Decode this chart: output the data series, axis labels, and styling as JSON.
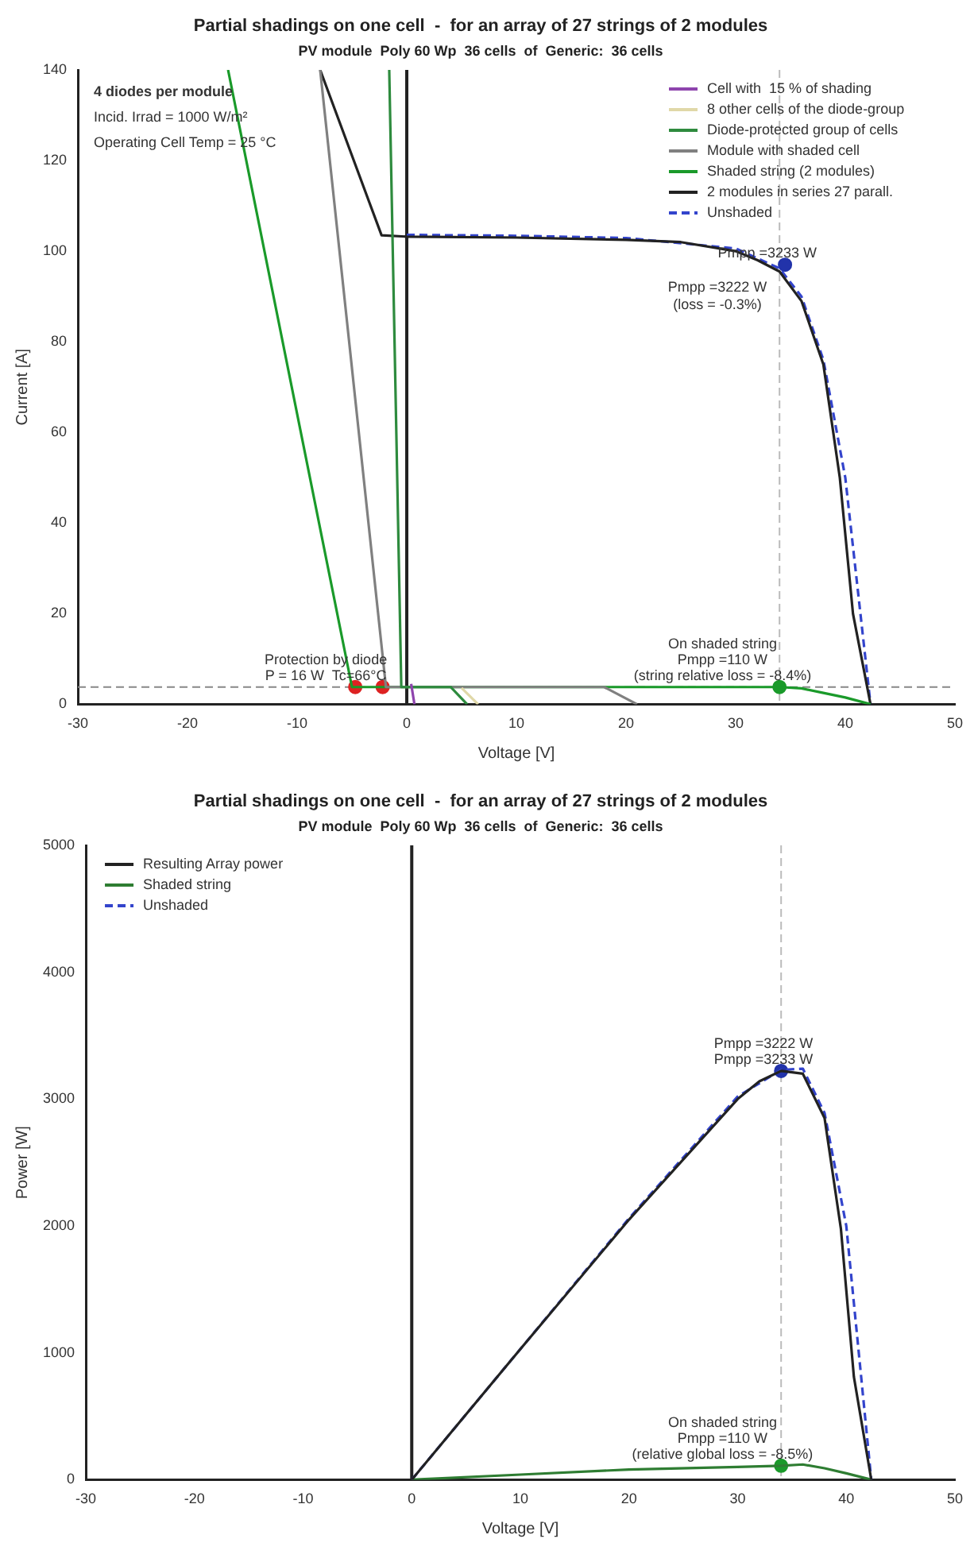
{
  "chart_data": [
    {
      "type": "line",
      "title": "Partial shadings on one cell  -  for an array of 27 strings of 2 modules",
      "subtitle": "PV module  Poly 60 Wp  36 cells  of  Generic:  36 cells",
      "xlabel": "Voltage [V]",
      "ylabel": "Current [A]",
      "xlim": [
        -30,
        50
      ],
      "xticks": [
        -30,
        -20,
        -10,
        0,
        10,
        20,
        30,
        40,
        50
      ],
      "ylim": [
        0,
        140
      ],
      "yticks": [
        0,
        20,
        40,
        60,
        80,
        100,
        120,
        140
      ],
      "legend": "top right",
      "series": [
        {
          "name": "Cell with  15 % of shading",
          "color": "#8e44ad",
          "type": "line",
          "x": [
            0.4,
            0.7
          ],
          "values": [
            4.5,
            0
          ]
        },
        {
          "name": "8 other cells of the diode-group",
          "color": "#e0d8a8",
          "type": "line",
          "x": [
            5,
            6.5
          ],
          "values": [
            3.6,
            0
          ]
        },
        {
          "name": "Diode-protected group of cells",
          "color": "#2e8b3e",
          "type": "line",
          "x": [
            -1.6,
            -0.5,
            4,
            5.5
          ],
          "values": [
            140,
            3.8,
            3.8,
            0
          ]
        },
        {
          "name": "Module with shaded cell",
          "color": "#808080",
          "type": "line",
          "x": [
            -7.9,
            -1.9,
            0,
            18,
            21
          ],
          "values": [
            140,
            3.8,
            3.8,
            3.8,
            0
          ]
        },
        {
          "name": "Shaded string (2 modules)",
          "color": "#1a9a2a",
          "type": "line",
          "x": [
            -16.3,
            -5,
            0,
            10,
            20,
            30,
            34,
            36,
            38,
            40,
            42.3
          ],
          "values": [
            140,
            3.8,
            3.8,
            3.8,
            3.8,
            3.8,
            3.8,
            3.5,
            2.5,
            1.5,
            0
          ]
        },
        {
          "name": "2 modules in series 27 parall.",
          "color": "#222222",
          "type": "line",
          "x": [
            -7.9,
            -2.3,
            0,
            10,
            20,
            25,
            30,
            32,
            34,
            36,
            38,
            39.5,
            40.7,
            42.3
          ],
          "values": [
            140,
            103.5,
            103.2,
            103,
            102.5,
            102,
            100,
            98,
            95.5,
            89,
            75,
            50,
            20,
            0
          ]
        },
        {
          "name": "Unshaded",
          "color": "#3344cc",
          "type": "line",
          "line_style": "dashed",
          "x": [
            0,
            10,
            20,
            30,
            34,
            36,
            38,
            40,
            42.3
          ],
          "values": [
            103.6,
            103.4,
            102.9,
            100.6,
            96.2,
            90,
            76,
            50,
            0
          ]
        },
        {
          "color": "#dd2222",
          "type": "scatter",
          "marker": "circle",
          "x": [
            -4.7,
            -2.2
          ],
          "values": [
            3.8,
            3.8
          ]
        },
        {
          "color": "#1a9a2a",
          "type": "scatter",
          "marker": "circle",
          "x": [
            34
          ],
          "values": [
            3.8
          ]
        },
        {
          "color": "#2233aa",
          "type": "scatter",
          "marker": "circle",
          "x": [
            34.5
          ],
          "values": [
            97
          ]
        }
      ],
      "ref_lines": [
        {
          "axis": "x",
          "value": 0,
          "color": "#222222"
        },
        {
          "axis": "x",
          "value": 34,
          "color": "#bbbbbb",
          "line_style": "dashed"
        },
        {
          "axis": "y",
          "value": 3.8,
          "color": "#888888",
          "line_style": "dashed"
        }
      ],
      "annotations": [
        "4 diodes per module",
        "Incid. Irrad = 1000 W/m²",
        "Operating Cell Temp = 25 °C",
        {
          "text": "Pmpp =3233 W",
          "x": 34.5,
          "y": 97
        },
        {
          "text": "Pmpp =3222 W",
          "x": 34,
          "y": 95.5
        },
        {
          "text": "(loss = -0.3%)",
          "x": 34,
          "y": 95.5
        },
        {
          "text": "Protection by diode",
          "x": -4.7,
          "y": 3.8
        },
        {
          "text": "P = 16 W  Tc=66°C",
          "x": -4.7,
          "y": 3.8
        },
        {
          "text": "On shaded string",
          "x": 34,
          "y": 3.8
        },
        {
          "text": "Pmpp =110 W",
          "x": 34,
          "y": 3.8
        },
        {
          "text": "(string relative loss = -8.4%)",
          "x": 34,
          "y": 3.8
        }
      ]
    },
    {
      "type": "line",
      "title": "Partial shadings on one cell  -  for an array of 27 strings of 2 modules",
      "subtitle": "PV module  Poly 60 Wp  36 cells  of  Generic:  36 cells",
      "xlabel": "Voltage [V]",
      "ylabel": "Power [W]",
      "xlim": [
        -30,
        50
      ],
      "xticks": [
        -30,
        -20,
        -10,
        0,
        10,
        20,
        30,
        40,
        50
      ],
      "ylim": [
        0,
        5000
      ],
      "yticks": [
        0,
        1000,
        2000,
        3000,
        4000,
        5000
      ],
      "legend": "top left",
      "series": [
        {
          "name": "Resulting Array power",
          "color": "#222222",
          "type": "line",
          "x": [
            0,
            10,
            20,
            30,
            32,
            34,
            36,
            38,
            39.5,
            40.7,
            42.3
          ],
          "values": [
            0,
            1030,
            2050,
            3000,
            3140,
            3222,
            3200,
            2850,
            1980,
            810,
            0
          ]
        },
        {
          "name": "Shaded string",
          "color": "#2e7d32",
          "type": "line",
          "x": [
            0,
            10,
            20,
            30,
            34,
            36,
            38,
            40,
            42.3
          ],
          "values": [
            0,
            40,
            80,
            100,
            110,
            120,
            90,
            50,
            0
          ]
        },
        {
          "name": "Unshaded",
          "color": "#3344cc",
          "type": "line",
          "line_style": "dashed",
          "x": [
            0,
            10,
            20,
            30,
            34,
            36,
            38,
            40,
            42.3
          ],
          "values": [
            0,
            1030,
            2060,
            3020,
            3230,
            3240,
            2890,
            2000,
            0
          ]
        },
        {
          "color": "#2233aa",
          "type": "scatter",
          "marker": "circle",
          "x": [
            34
          ],
          "values": [
            3222
          ]
        },
        {
          "color": "#1a9a2a",
          "type": "scatter",
          "marker": "circle",
          "x": [
            34
          ],
          "values": [
            110
          ]
        }
      ],
      "ref_lines": [
        {
          "axis": "x",
          "value": 0,
          "color": "#222222"
        },
        {
          "axis": "x",
          "value": 34,
          "color": "#bbbbbb",
          "line_style": "dashed"
        }
      ],
      "annotations": [
        {
          "text": "Pmpp =3222 W",
          "x": 34,
          "y": 3222
        },
        {
          "text": "Pmpp =3233 W",
          "x": 34,
          "y": 3222
        },
        {
          "text": "On shaded string",
          "x": 34,
          "y": 110
        },
        {
          "text": "Pmpp =110 W",
          "x": 34,
          "y": 110
        },
        {
          "text": "(relative global loss = -8.5%)",
          "x": 34,
          "y": 110
        }
      ]
    }
  ]
}
